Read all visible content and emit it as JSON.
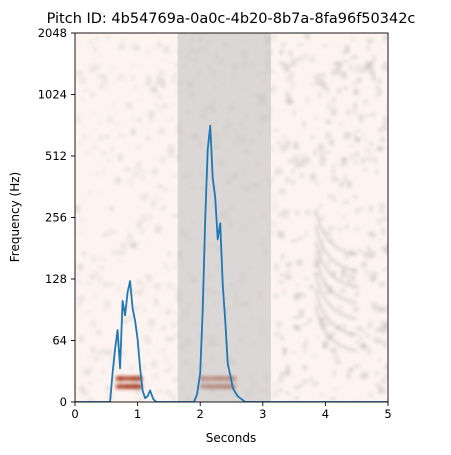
{
  "title": "Pitch ID: 4b54769a-0a0c-4b20-8b7a-8fa96f50342c",
  "chart_data": {
    "type": "line",
    "title": "Pitch ID: 4b54769a-0a0c-4b20-8b7a-8fa96f50342c",
    "xlabel": "Seconds",
    "ylabel": "Frequency (Hz)",
    "xlim": [
      0,
      5
    ],
    "ylim": [
      0,
      2048
    ],
    "y_scale": "symlog",
    "x_ticks": [
      0,
      1,
      2,
      3,
      4,
      5
    ],
    "x_tick_labels": [
      "0",
      "1",
      "2",
      "3",
      "4",
      "5"
    ],
    "y_ticks": [
      0,
      64,
      128,
      256,
      512,
      1024,
      2048
    ],
    "y_tick_labels": [
      "0",
      "64",
      "128",
      "256",
      "512",
      "1024",
      "2048"
    ],
    "grid": false,
    "background": "spectrogram",
    "highlight_region": {
      "x_start": 1.64,
      "x_end": 3.13,
      "color": "#bfbfbf"
    },
    "series": [
      {
        "color": "#1f77b4",
        "x": [
          0.0,
          0.1,
          0.2,
          0.3,
          0.4,
          0.5,
          0.56,
          0.6,
          0.64,
          0.68,
          0.72,
          0.76,
          0.8,
          0.84,
          0.88,
          0.92,
          0.96,
          1.0,
          1.04,
          1.08,
          1.12,
          1.16,
          1.2,
          1.25,
          1.3,
          1.4,
          1.5,
          1.6,
          1.7,
          1.8,
          1.85,
          1.9,
          1.95,
          2.0,
          2.04,
          2.08,
          2.12,
          2.16,
          2.2,
          2.24,
          2.28,
          2.32,
          2.36,
          2.4,
          2.44,
          2.48,
          2.52,
          2.56,
          2.6,
          2.64,
          2.68,
          2.72,
          2.76,
          2.8,
          2.9,
          3.0,
          3.2,
          3.4,
          3.6,
          3.8,
          4.0,
          4.2,
          4.4,
          4.6,
          4.8,
          5.0
        ],
        "y": [
          0,
          0,
          0,
          0,
          0,
          0,
          0,
          30,
          55,
          72,
          35,
          100,
          85,
          110,
          125,
          92,
          80,
          65,
          35,
          12,
          4,
          6,
          12,
          3,
          0,
          0,
          0,
          0,
          0,
          0,
          0,
          0,
          8,
          30,
          90,
          250,
          550,
          720,
          400,
          320,
          200,
          240,
          120,
          80,
          40,
          28,
          15,
          10,
          6,
          4,
          2,
          0,
          0,
          0,
          0,
          0,
          0,
          0,
          0,
          0,
          0,
          0,
          0,
          0,
          0,
          0
        ]
      }
    ]
  }
}
